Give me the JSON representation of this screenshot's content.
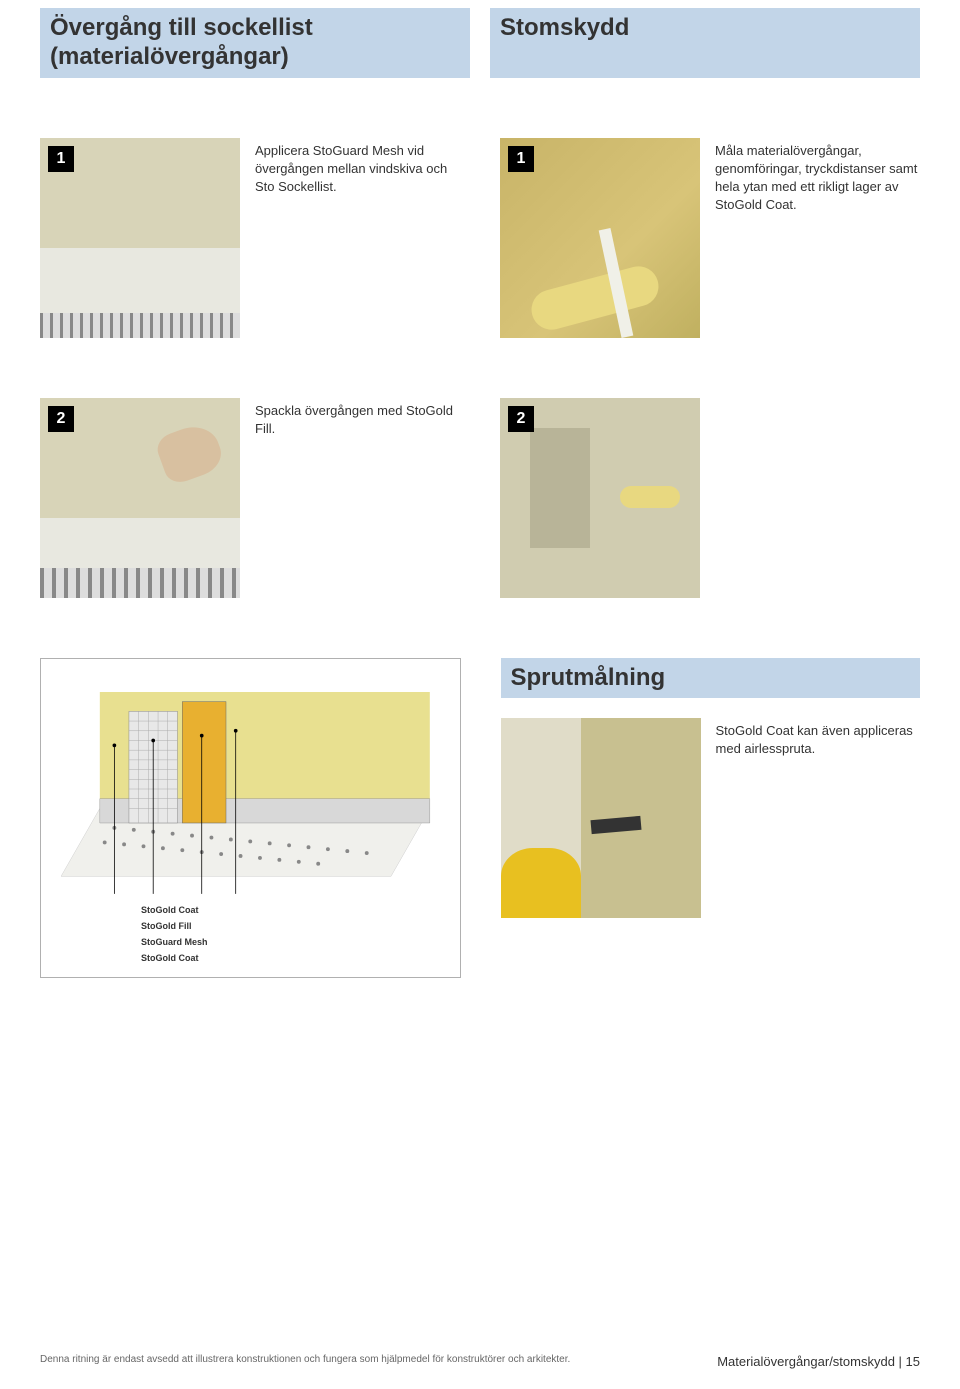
{
  "headings": {
    "left": "Övergång till sockellist\n(materialövergångar)",
    "right": "Stomskydd",
    "spray": "Sprutmålning"
  },
  "steps_left": [
    {
      "num": "1",
      "text": "Applicera StoGuard Mesh vid övergången mellan vindskiva och Sto Sockellist."
    },
    {
      "num": "2",
      "text": "Spackla övergången med StoGold Fill."
    }
  ],
  "steps_right": [
    {
      "num": "1",
      "text": "Måla materialövergångar, genomföringar, tryckdistanser samt hela ytan med ett rikligt lager av StoGold Coat."
    },
    {
      "num": "2",
      "text": ""
    }
  ],
  "spray_text": "StoGold Coat kan även appliceras med airlesspruta.",
  "diagram": {
    "background": "#ffffff",
    "wall_color": "#e8e090",
    "layer_fill": "#e8b030",
    "layer_mesh": "#d0d0d0",
    "rail_color": "#d8d8d8",
    "outline_color": "#666666",
    "leader_color": "#000000",
    "labels": [
      "StoGold Coat",
      "StoGold Fill",
      "StoGuard Mesh",
      "StoGold Coat"
    ]
  },
  "footer": {
    "left": "Denna ritning är endast avsedd att illustrera konstruktionen och fungera som hjälpmedel för konstruktörer och arkitekter.",
    "right": "Materialövergångar/stomskydd | 15"
  },
  "colors": {
    "heading_bg": "#c2d5e8",
    "text": "#333333",
    "badge_bg": "#000000",
    "badge_fg": "#ffffff"
  },
  "typography": {
    "heading_fontsize": 24,
    "body_fontsize": 13,
    "legend_fontsize": 9,
    "footer_fontsize": 10
  }
}
